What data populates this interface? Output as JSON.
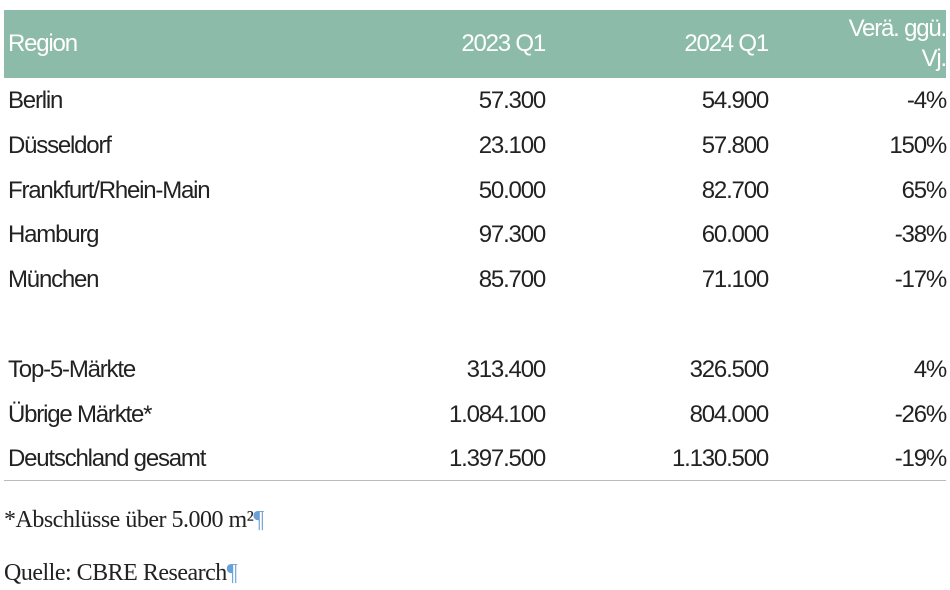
{
  "table": {
    "header": [
      "Region",
      "2023 Q1",
      "2024 Q1",
      "Verä. ggü. Vj."
    ],
    "rows": [
      [
        "Berlin",
        "57.300",
        "54.900",
        "-4%"
      ],
      [
        "Düsseldorf",
        "23.100",
        "57.800",
        "150%"
      ],
      [
        "Frankfurt/Rhein-Main",
        "50.000",
        "82.700",
        "65%"
      ],
      [
        "Hamburg",
        "97.300",
        "60.000",
        "-38%"
      ],
      [
        "München",
        "85.700",
        "71.100",
        "-17%"
      ]
    ],
    "summary_rows": [
      [
        "Top-5-Märkte",
        "313.400",
        "326.500",
        "4%"
      ],
      [
        "Übrige Märkte*",
        "1.084.100",
        "804.000",
        "-26%"
      ],
      [
        "Deutschland gesamt",
        "1.397.500",
        "1.130.500",
        "-19%"
      ]
    ]
  },
  "notes": [
    "*Abschlüsse über 5.000 m²",
    "Quelle: CBRE Research"
  ]
}
